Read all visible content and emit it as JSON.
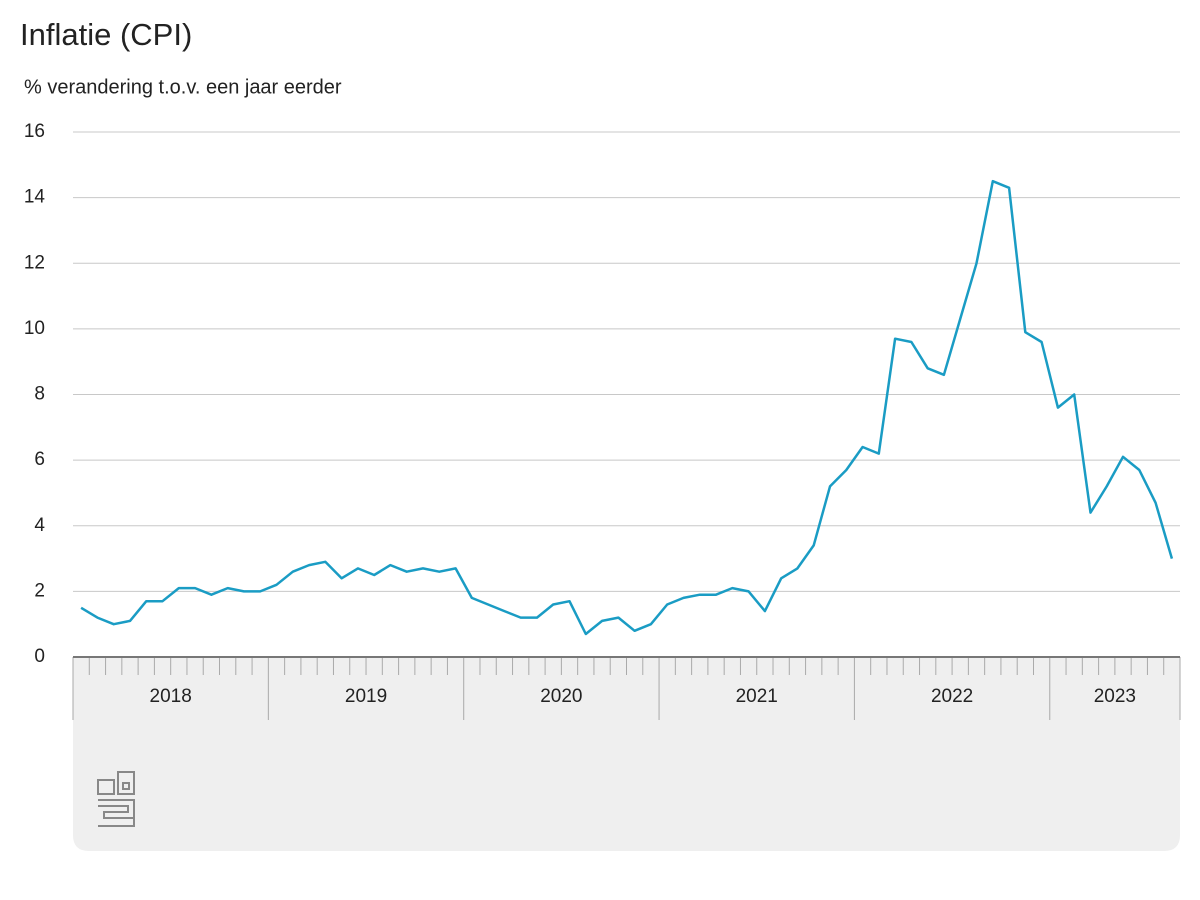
{
  "chart_data": {
    "type": "line",
    "title": "Inflatie (CPI)",
    "subtitle": "% verandering t.o.v. een jaar eerder",
    "categories": [
      null,
      null,
      null,
      null,
      null,
      null,
      null,
      null,
      null,
      null,
      null,
      null,
      null,
      null,
      null,
      null,
      null,
      null,
      null,
      null,
      null,
      null,
      null,
      null,
      null,
      null,
      null,
      null,
      null,
      null,
      null,
      null,
      null,
      null,
      null,
      null,
      null,
      null,
      null,
      null,
      null,
      null,
      null,
      null,
      null,
      null,
      null,
      null,
      null,
      null,
      null,
      null,
      null,
      null,
      null,
      null,
      null,
      null,
      null,
      null,
      null,
      null,
      null,
      null,
      null,
      null,
      null,
      null
    ],
    "years": [
      "2018",
      "2019",
      "2020",
      "2021",
      "2022",
      "2023"
    ],
    "series": [
      {
        "name": "CPI",
        "color": "#1a9cc4",
        "values": [
          1.5,
          1.2,
          1.0,
          1.1,
          1.7,
          1.7,
          2.1,
          2.1,
          1.9,
          2.1,
          2.0,
          2.0,
          2.2,
          2.6,
          2.8,
          2.9,
          2.4,
          2.7,
          2.5,
          2.8,
          2.6,
          2.7,
          2.6,
          2.7,
          1.8,
          1.6,
          1.4,
          1.2,
          1.2,
          1.6,
          1.7,
          0.7,
          1.1,
          1.2,
          0.8,
          1.0,
          1.6,
          1.8,
          1.9,
          1.9,
          2.1,
          2.0,
          1.4,
          2.4,
          2.7,
          3.4,
          5.2,
          5.7,
          6.4,
          6.2,
          9.7,
          9.6,
          8.8,
          8.6,
          10.3,
          12.0,
          14.5,
          14.3,
          9.9,
          9.6,
          7.6,
          8.0,
          4.4,
          5.2,
          6.1,
          5.7,
          4.7,
          3.0
        ]
      }
    ],
    "ylim": [
      0,
      16
    ],
    "yticks": [
      0,
      2,
      4,
      6,
      8,
      10,
      12,
      14,
      16
    ],
    "grid": true
  }
}
